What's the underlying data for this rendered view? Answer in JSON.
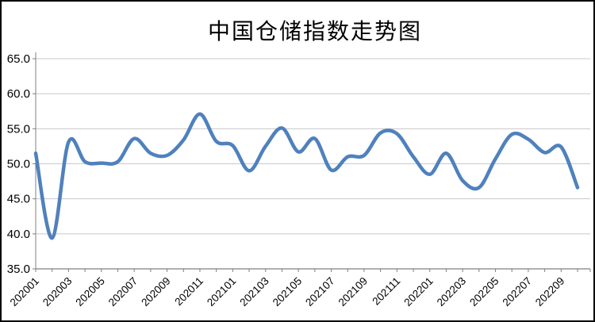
{
  "chart": {
    "title": "中国仓储指数走势图"
  },
  "chart_data": {
    "type": "line",
    "title": "中国仓储指数走势图",
    "xlabel": "",
    "ylabel": "",
    "x": [
      "202001",
      "202002",
      "202003",
      "202004",
      "202005",
      "202006",
      "202007",
      "202008",
      "202009",
      "202010",
      "202011",
      "202012",
      "202101",
      "202102",
      "202103",
      "202104",
      "202105",
      "202106",
      "202107",
      "202108",
      "202109",
      "202110",
      "202111",
      "202112",
      "202201",
      "202202",
      "202203",
      "202204",
      "202205",
      "202206",
      "202207",
      "202208",
      "202209",
      "202210"
    ],
    "values": [
      51.5,
      39.4,
      53.1,
      50.3,
      50.1,
      50.3,
      53.6,
      51.5,
      51.2,
      53.4,
      57.1,
      53.2,
      52.6,
      49.0,
      52.5,
      55.1,
      51.7,
      53.6,
      49.1,
      51.0,
      51.2,
      54.4,
      54.3,
      51.0,
      48.5,
      51.5,
      47.6,
      46.6,
      50.7,
      54.2,
      53.5,
      51.6,
      52.4,
      46.6
    ],
    "x_tick_labels": [
      "202001",
      "202003",
      "202005",
      "202007",
      "202009",
      "202011",
      "202101",
      "202103",
      "202105",
      "202107",
      "202109",
      "202111",
      "202201",
      "202203",
      "202205",
      "202207",
      "202209"
    ],
    "y_tick_labels": [
      "35.0",
      "40.0",
      "45.0",
      "50.0",
      "55.0",
      "60.0",
      "65.0"
    ],
    "y_ticks": [
      35,
      40,
      45,
      50,
      55,
      60,
      65
    ],
    "ylim": [
      35,
      65
    ],
    "grid": "horizontal",
    "legend": "none",
    "smooth": true,
    "line_color": "#4F81BD",
    "axis_color": "#808080",
    "grid_color": "#C8C8C8",
    "label_color": "#000000"
  }
}
